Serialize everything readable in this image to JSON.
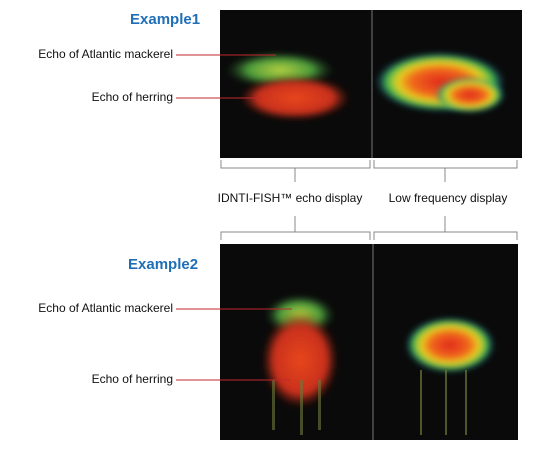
{
  "examples": [
    {
      "title": "Example1",
      "labels": [
        "Echo of Atlantic mackerel",
        "Echo of herring"
      ]
    },
    {
      "title": "Example2",
      "labels": [
        "Echo of Atlantic mackerel",
        "Echo of herring"
      ]
    }
  ],
  "captions": [
    "IDNTI-FISH™ echo display",
    "Low frequency display"
  ]
}
